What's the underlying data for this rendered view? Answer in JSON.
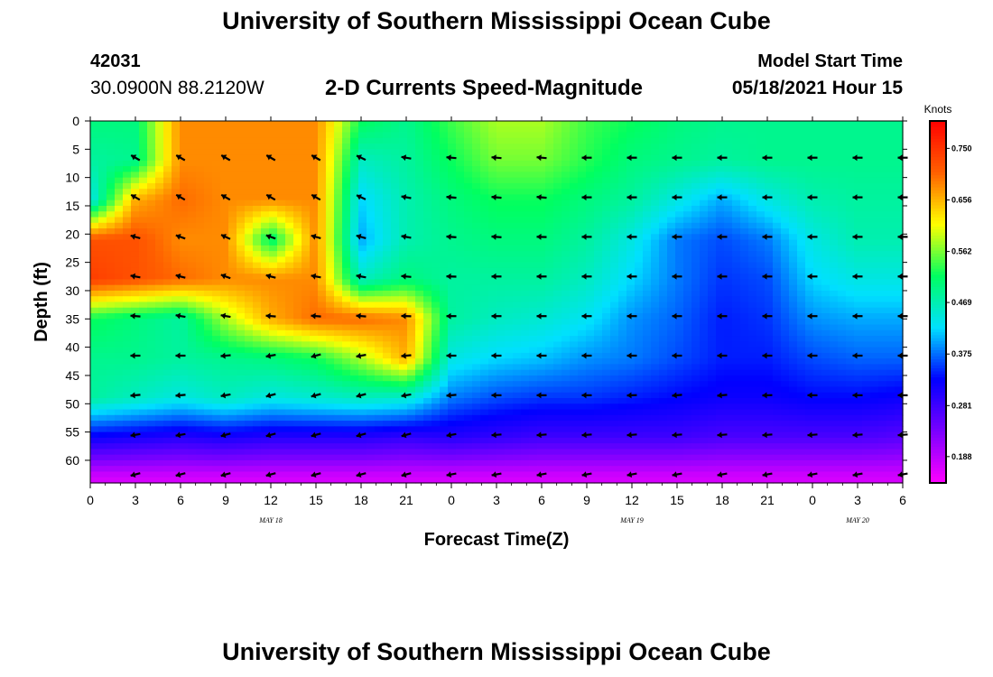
{
  "header": {
    "title": "University of Southern Mississippi Ocean Cube",
    "station_id": "42031",
    "location": "30.0900N  88.2120W",
    "chart_title": "2-D Currents Speed-Magnitude",
    "model_start_label": "Model Start Time",
    "model_start_value": "05/18/2021 Hour 15"
  },
  "footer": {
    "title": "University of Southern Mississippi Ocean Cube"
  },
  "chart_data": {
    "type": "heatmap",
    "title": "2-D Currents Speed-Magnitude",
    "xlabel": "Forecast Time(Z)",
    "ylabel": "Depth (ft)",
    "x_hours_range": [
      0,
      54
    ],
    "x_tick_labels": [
      "0",
      "3",
      "6",
      "9",
      "12",
      "15",
      "18",
      "21",
      "0",
      "3",
      "6",
      "9",
      "12",
      "15",
      "18",
      "21",
      "0",
      "3",
      "6"
    ],
    "date_labels": [
      {
        "label": "MAY 18",
        "hour": 12
      },
      {
        "label": "MAY 19",
        "hour": 36
      },
      {
        "label": "MAY 20",
        "hour": 51
      }
    ],
    "y_range": [
      0,
      64
    ],
    "y_tick_labels": [
      "0",
      "5",
      "10",
      "15",
      "20",
      "25",
      "30",
      "35",
      "40",
      "45",
      "50",
      "55",
      "60"
    ],
    "colorbar": {
      "unit": "Knots",
      "min": 0.14,
      "max": 0.8,
      "tick_labels": [
        "0.750",
        "0.656",
        "0.562",
        "0.469",
        "0.375",
        "0.281",
        "0.188"
      ],
      "tick_values": [
        0.75,
        0.656,
        0.562,
        0.469,
        0.375,
        0.281,
        0.188
      ]
    },
    "speed_grid": {
      "units": "knots",
      "hours": [
        0,
        3,
        6,
        9,
        12,
        15,
        18,
        21,
        24,
        27,
        30,
        33,
        36,
        39,
        42,
        45,
        48,
        51,
        54
      ],
      "depths_ft": [
        0,
        7,
        14,
        21,
        28,
        35,
        42,
        49,
        56,
        63
      ],
      "values": [
        [
          0.5,
          0.5,
          0.68,
          0.68,
          0.68,
          0.68,
          0.52,
          0.49,
          0.54,
          0.58,
          0.58,
          0.54,
          0.52,
          0.5,
          0.49,
          0.49,
          0.49,
          0.49,
          0.49
        ],
        [
          0.48,
          0.49,
          0.68,
          0.68,
          0.68,
          0.68,
          0.46,
          0.48,
          0.52,
          0.56,
          0.56,
          0.53,
          0.5,
          0.49,
          0.48,
          0.49,
          0.49,
          0.49,
          0.49
        ],
        [
          0.43,
          0.66,
          0.7,
          0.68,
          0.68,
          0.68,
          0.42,
          0.47,
          0.5,
          0.52,
          0.52,
          0.5,
          0.48,
          0.44,
          0.4,
          0.44,
          0.47,
          0.48,
          0.48
        ],
        [
          0.72,
          0.72,
          0.68,
          0.68,
          0.5,
          0.68,
          0.4,
          0.47,
          0.49,
          0.5,
          0.5,
          0.48,
          0.44,
          0.38,
          0.36,
          0.38,
          0.44,
          0.47,
          0.47
        ],
        [
          0.74,
          0.72,
          0.7,
          0.68,
          0.68,
          0.68,
          0.46,
          0.5,
          0.48,
          0.48,
          0.48,
          0.46,
          0.42,
          0.38,
          0.35,
          0.36,
          0.42,
          0.44,
          0.44
        ],
        [
          0.52,
          0.5,
          0.48,
          0.58,
          0.66,
          0.7,
          0.7,
          0.68,
          0.48,
          0.46,
          0.45,
          0.43,
          0.39,
          0.37,
          0.34,
          0.35,
          0.39,
          0.4,
          0.4
        ],
        [
          0.49,
          0.49,
          0.48,
          0.49,
          0.5,
          0.52,
          0.58,
          0.66,
          0.44,
          0.42,
          0.41,
          0.39,
          0.38,
          0.36,
          0.34,
          0.34,
          0.36,
          0.37,
          0.37
        ],
        [
          0.48,
          0.46,
          0.44,
          0.46,
          0.44,
          0.45,
          0.46,
          0.45,
          0.38,
          0.36,
          0.35,
          0.35,
          0.34,
          0.33,
          0.32,
          0.32,
          0.33,
          0.33,
          0.32
        ],
        [
          0.32,
          0.31,
          0.3,
          0.31,
          0.3,
          0.3,
          0.3,
          0.29,
          0.3,
          0.29,
          0.28,
          0.28,
          0.28,
          0.28,
          0.27,
          0.27,
          0.27,
          0.27,
          0.26
        ],
        [
          0.17,
          0.17,
          0.17,
          0.17,
          0.17,
          0.17,
          0.17,
          0.17,
          0.17,
          0.17,
          0.17,
          0.17,
          0.17,
          0.17,
          0.17,
          0.17,
          0.17,
          0.17,
          0.17
        ]
      ]
    },
    "current_vectors": {
      "hours": [
        3,
        6,
        9,
        12,
        15,
        18,
        21,
        24,
        27,
        30,
        33,
        36,
        39,
        42,
        45,
        48,
        51,
        54
      ],
      "depths_ft": [
        6.5,
        13.5,
        20.5,
        27.5,
        34.5,
        41.5,
        48.5,
        55.5,
        62.5
      ],
      "direction_deg_by_hour": [
        [
          150,
          150,
          150,
          150,
          150,
          155,
          170,
          175,
          175,
          175,
          180,
          180,
          180,
          180,
          180,
          180,
          180,
          180
        ],
        [
          150,
          150,
          150,
          150,
          150,
          155,
          170,
          175,
          175,
          175,
          180,
          180,
          180,
          180,
          180,
          180,
          180,
          180
        ],
        [
          165,
          160,
          155,
          160,
          165,
          165,
          170,
          175,
          175,
          178,
          180,
          180,
          180,
          180,
          180,
          180,
          180,
          180
        ],
        [
          170,
          165,
          160,
          165,
          170,
          170,
          175,
          178,
          180,
          180,
          180,
          180,
          180,
          180,
          180,
          180,
          180,
          180
        ],
        [
          175,
          170,
          170,
          175,
          175,
          175,
          178,
          180,
          180,
          180,
          180,
          180,
          180,
          180,
          180,
          180,
          180,
          180
        ],
        [
          180,
          180,
          185,
          190,
          195,
          190,
          185,
          180,
          180,
          180,
          180,
          180,
          180,
          180,
          180,
          180,
          180,
          180
        ],
        [
          185,
          185,
          190,
          195,
          195,
          195,
          190,
          185,
          180,
          180,
          180,
          182,
          185,
          185,
          182,
          180,
          180,
          180
        ],
        [
          190,
          190,
          195,
          195,
          195,
          195,
          195,
          190,
          185,
          185,
          185,
          185,
          185,
          185,
          185,
          185,
          185,
          185
        ],
        [
          195,
          195,
          195,
          195,
          195,
          195,
          195,
          190,
          190,
          190,
          190,
          190,
          190,
          190,
          190,
          190,
          190,
          190
        ]
      ]
    }
  },
  "colors": {
    "colormap": [
      "#ff00ff",
      "#7a00ff",
      "#0000ff",
      "#00e0ff",
      "#00ff60",
      "#ffff00",
      "#ff6000",
      "#ff0000"
    ],
    "colorbar_border": "#000000"
  }
}
